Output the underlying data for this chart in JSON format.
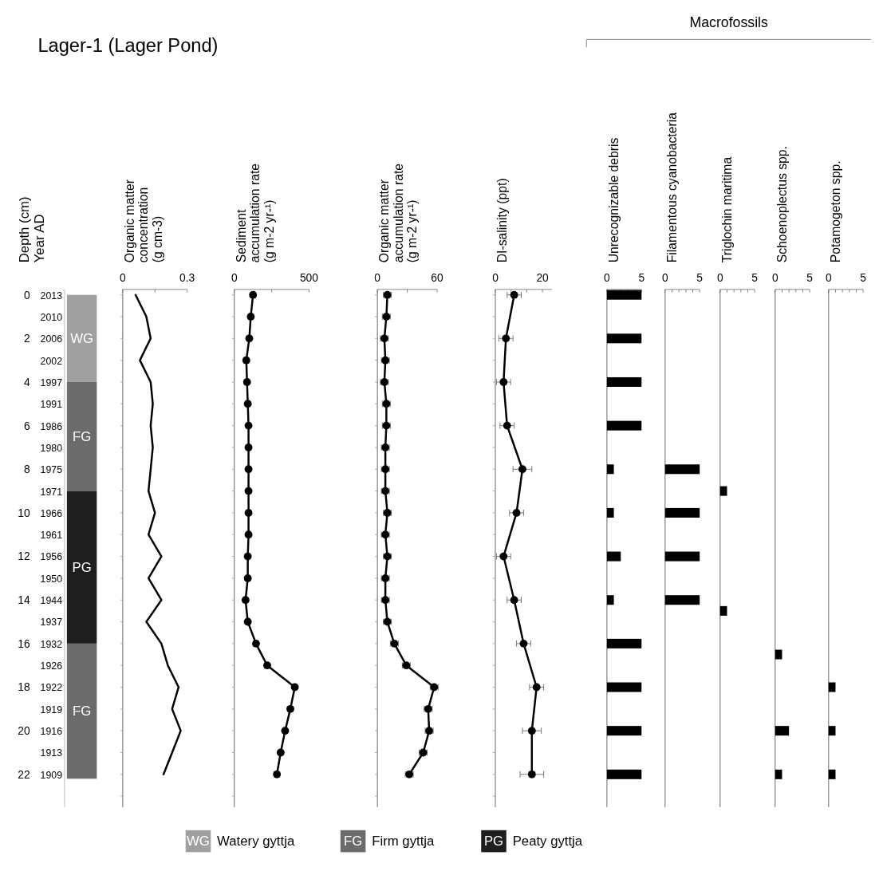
{
  "chart_data": [
    {
      "type": "bar",
      "title": "Lager-1 (Lager Pond)",
      "ylabel": "Depth (cm)",
      "y2label": "Year AD",
      "categories": [
        null
      ],
      "stacked": true,
      "legend": "bottom",
      "series": [
        {
          "name": "Watery gyttja",
          "color": "#a0a0a0",
          "values": [
            4
          ],
          "value_labels": [
            "WG"
          ]
        },
        {
          "name": "Firm gyttja",
          "color": "#6b6b6b",
          "values": [
            5
          ],
          "value_labels": [
            "FG"
          ]
        },
        {
          "name": "Peaty gyttja",
          "color": "#1e1e1e",
          "values": [
            7
          ],
          "value_labels": [
            "PG"
          ]
        },
        {
          "color": "#6b6b6b",
          "values": [
            6.2
          ],
          "value_labels": [
            "FG"
          ]
        }
      ],
      "ylim": [
        23.5,
        -0.25
      ],
      "yticks": [
        0,
        2,
        4,
        6,
        8,
        10,
        12,
        14,
        16,
        18,
        20,
        22
      ],
      "y2_categories": [
        "2013",
        "2010",
        "2006",
        "2002",
        "1997",
        "1991",
        "1986",
        "1980",
        "1975",
        "1971",
        "1966",
        "1961",
        "1956",
        "1950",
        "1944",
        "1937",
        "1932",
        "1926",
        "1922",
        "1919",
        "1916",
        "1913",
        "1909"
      ]
    },
    {
      "type": "line",
      "orientation": "horizontal",
      "title": "Organic matter\nconcentration\n(g cm-3)",
      "color": "#000000",
      "marker": "none",
      "tick_labels": "x",
      "x": [
        0,
        1,
        2,
        3,
        4,
        5,
        6,
        7,
        8,
        9,
        10,
        11,
        12,
        13,
        14,
        15,
        16,
        17,
        18,
        19,
        20,
        21,
        22
      ],
      "values": [
        0.06,
        0.11,
        0.13,
        0.08,
        0.13,
        0.14,
        0.13,
        0.14,
        0.13,
        0.12,
        0.15,
        0.12,
        0.18,
        0.12,
        0.18,
        0.11,
        0.18,
        0.21,
        0.26,
        0.23,
        0.27,
        0.23,
        0.19
      ],
      "xlim": [
        0,
        0.3
      ],
      "xticks": [
        0,
        {
          "value": 0.15,
          "label": null
        },
        0.3
      ],
      "ylim": [
        23.5,
        -0.25
      ],
      "yticks": [
        {
          "value": 0,
          "label": null
        },
        {
          "value": 1,
          "label": null
        },
        {
          "value": 2,
          "label": null
        },
        {
          "value": 3,
          "label": null
        },
        {
          "value": 4,
          "label": null
        },
        {
          "value": 5,
          "label": null
        },
        {
          "value": 6,
          "label": null
        },
        {
          "value": 7,
          "label": null
        },
        {
          "value": 8,
          "label": null
        },
        {
          "value": 9,
          "label": null
        },
        {
          "value": 10,
          "label": null
        },
        {
          "value": 11,
          "label": null
        },
        {
          "value": 12,
          "label": null
        },
        {
          "value": 13,
          "label": null
        },
        {
          "value": 14,
          "label": null
        },
        {
          "value": 15,
          "label": null
        },
        {
          "value": 16,
          "label": null
        },
        {
          "value": 17,
          "label": null
        },
        {
          "value": 18,
          "label": null
        },
        {
          "value": 19,
          "label": null
        },
        {
          "value": 20,
          "label": null
        },
        {
          "value": 21,
          "label": null
        },
        {
          "value": 22,
          "label": null
        },
        {
          "value": 23,
          "label": null
        }
      ]
    },
    {
      "type": "line",
      "orientation": "horizontal",
      "title": "Sediment\naccumulation rate\n(g m-2 yr-¹)",
      "color": "#000000",
      "marker": "circle",
      "tick_labels": "x",
      "x": [
        0,
        1,
        2,
        3,
        4,
        5,
        6,
        7,
        8,
        9,
        10,
        11,
        12,
        13,
        14,
        15,
        16,
        17,
        18,
        19,
        20,
        21,
        22
      ],
      "values": [
        125,
        110,
        100,
        80,
        85,
        90,
        95,
        95,
        95,
        95,
        95,
        95,
        90,
        90,
        75,
        90,
        145,
        220,
        405,
        375,
        340,
        310,
        285
      ],
      "errors": [
        15,
        15,
        15,
        15,
        15,
        15,
        15,
        15,
        15,
        15,
        15,
        15,
        15,
        15,
        15,
        15,
        15,
        15,
        15,
        15,
        15,
        15,
        15
      ],
      "xlim": [
        0,
        500
      ],
      "xticks": [
        0,
        {
          "value": 250,
          "label": null
        },
        500
      ],
      "ylim": [
        23.5,
        -0.25
      ],
      "yticks": [
        {
          "value": 0,
          "label": null
        },
        {
          "value": 1,
          "label": null
        },
        {
          "value": 2,
          "label": null
        },
        {
          "value": 3,
          "label": null
        },
        {
          "value": 4,
          "label": null
        },
        {
          "value": 5,
          "label": null
        },
        {
          "value": 6,
          "label": null
        },
        {
          "value": 7,
          "label": null
        },
        {
          "value": 8,
          "label": null
        },
        {
          "value": 9,
          "label": null
        },
        {
          "value": 10,
          "label": null
        },
        {
          "value": 11,
          "label": null
        },
        {
          "value": 12,
          "label": null
        },
        {
          "value": 13,
          "label": null
        },
        {
          "value": 14,
          "label": null
        },
        {
          "value": 15,
          "label": null
        },
        {
          "value": 16,
          "label": null
        },
        {
          "value": 17,
          "label": null
        },
        {
          "value": 18,
          "label": null
        },
        {
          "value": 19,
          "label": null
        },
        {
          "value": 20,
          "label": null
        },
        {
          "value": 21,
          "label": null
        },
        {
          "value": 22,
          "label": null
        },
        {
          "value": 23,
          "label": null
        }
      ]
    },
    {
      "type": "line",
      "orientation": "horizontal",
      "title": "Organic matter\naccumulation rate\n(g m-2 yr-¹)",
      "color": "#000000",
      "marker": "circle",
      "tick_labels": "x",
      "x": [
        0,
        1,
        2,
        3,
        4,
        5,
        6,
        7,
        8,
        9,
        10,
        11,
        12,
        13,
        14,
        15,
        16,
        17,
        18,
        19,
        20,
        21,
        22
      ],
      "values": [
        10,
        9,
        7,
        8,
        7,
        9,
        9,
        8,
        8,
        8,
        10,
        8,
        10,
        8,
        8,
        10,
        17,
        29,
        57,
        51,
        52,
        46,
        32
      ],
      "errors": [
        4,
        4,
        4,
        4,
        4,
        4,
        4,
        4,
        4,
        4,
        4,
        4,
        4,
        4,
        4,
        4,
        4,
        4,
        4,
        4,
        4,
        4,
        4
      ],
      "xlim": [
        0,
        60
      ],
      "xticks": [
        0,
        {
          "value": 30,
          "label": null
        },
        60
      ],
      "ylim": [
        23.5,
        -0.25
      ],
      "yticks": [
        {
          "value": 0,
          "label": null
        },
        {
          "value": 1,
          "label": null
        },
        {
          "value": 2,
          "label": null
        },
        {
          "value": 3,
          "label": null
        },
        {
          "value": 4,
          "label": null
        },
        {
          "value": 5,
          "label": null
        },
        {
          "value": 6,
          "label": null
        },
        {
          "value": 7,
          "label": null
        },
        {
          "value": 8,
          "label": null
        },
        {
          "value": 9,
          "label": null
        },
        {
          "value": 10,
          "label": null
        },
        {
          "value": 11,
          "label": null
        },
        {
          "value": 12,
          "label": null
        },
        {
          "value": 13,
          "label": null
        },
        {
          "value": 14,
          "label": null
        },
        {
          "value": 15,
          "label": null
        },
        {
          "value": 16,
          "label": null
        },
        {
          "value": 17,
          "label": null
        },
        {
          "value": 18,
          "label": null
        },
        {
          "value": 19,
          "label": null
        },
        {
          "value": 20,
          "label": null
        },
        {
          "value": 21,
          "label": null
        },
        {
          "value": 22,
          "label": null
        },
        {
          "value": 23,
          "label": null
        }
      ]
    },
    {
      "type": "line",
      "orientation": "horizontal",
      "title": "DI-salinity (ppt)",
      "color": "#000000",
      "marker": "circle",
      "tick_labels": "x",
      "x": [
        0,
        2,
        4,
        6,
        8,
        10,
        12,
        14,
        16,
        18,
        20,
        22
      ],
      "values": [
        8,
        4.5,
        3.5,
        5,
        11.5,
        9,
        3.5,
        8,
        12,
        17.5,
        15.5,
        15.5
      ],
      "errors": [
        3,
        3,
        3,
        3,
        4,
        3,
        3,
        3,
        3,
        3,
        4,
        5
      ],
      "xlim": [
        0,
        24
      ],
      "xticks": [
        0,
        {
          "value": 6.67,
          "label": null
        },
        {
          "value": 13.33,
          "label": null
        },
        20
      ],
      "ylim": [
        23.5,
        -0.25
      ],
      "yticks": [
        {
          "value": 0,
          "label": null
        },
        {
          "value": 1,
          "label": null
        },
        {
          "value": 2,
          "label": null
        },
        {
          "value": 3,
          "label": null
        },
        {
          "value": 4,
          "label": null
        },
        {
          "value": 5,
          "label": null
        },
        {
          "value": 6,
          "label": null
        },
        {
          "value": 7,
          "label": null
        },
        {
          "value": 8,
          "label": null
        },
        {
          "value": 9,
          "label": null
        },
        {
          "value": 10,
          "label": null
        },
        {
          "value": 11,
          "label": null
        },
        {
          "value": 12,
          "label": null
        },
        {
          "value": 13,
          "label": null
        },
        {
          "value": 14,
          "label": null
        },
        {
          "value": 15,
          "label": null
        },
        {
          "value": 16,
          "label": null
        },
        {
          "value": 17,
          "label": null
        },
        {
          "value": 18,
          "label": null
        },
        {
          "value": 19,
          "label": null
        },
        {
          "value": 20,
          "label": null
        },
        {
          "value": 21,
          "label": null
        },
        {
          "value": 22,
          "label": null
        },
        {
          "value": 23,
          "label": null
        }
      ]
    },
    {
      "type": "bar",
      "orientation": "horizontal",
      "title": "Unrecognizable debris",
      "annotations": [
        "Macrofossils"
      ],
      "color": "#000000",
      "tick_labels": "x",
      "x": [
        0,
        2,
        4,
        6,
        8,
        10,
        12,
        14,
        16,
        18,
        20,
        22
      ],
      "values": [
        5,
        5,
        5,
        5,
        1,
        1,
        2,
        1,
        5,
        5,
        5,
        5
      ],
      "xlim": [
        0,
        5
      ],
      "xticks": [
        0,
        {
          "value": 1,
          "label": null
        },
        {
          "value": 2,
          "label": null
        },
        {
          "value": 3,
          "label": null
        },
        {
          "value": 4,
          "label": null
        },
        5
      ],
      "ylim": [
        23.5,
        -0.25
      ]
    },
    {
      "type": "bar",
      "orientation": "horizontal",
      "title": "Filamentous cyanobacteria",
      "color": "#000000",
      "tick_labels": "x",
      "x": [
        8,
        10,
        12,
        14
      ],
      "values": [
        5,
        5,
        5,
        5
      ],
      "xlim": [
        0,
        5
      ],
      "xticks": [
        0,
        {
          "value": 1,
          "label": null
        },
        {
          "value": 2,
          "label": null
        },
        {
          "value": 3,
          "label": null
        },
        {
          "value": 4,
          "label": null
        },
        5
      ],
      "ylim": [
        23.5,
        -0.25
      ]
    },
    {
      "type": "bar",
      "orientation": "horizontal",
      "title": "Triglochin maritima",
      "color": "#000000",
      "tick_labels": "x",
      "x": [
        9,
        14.5
      ],
      "values": [
        1,
        1
      ],
      "xlim": [
        0,
        5
      ],
      "xticks": [
        0,
        {
          "value": 1,
          "label": null
        },
        {
          "value": 2,
          "label": null
        },
        {
          "value": 3,
          "label": null
        },
        {
          "value": 4,
          "label": null
        },
        5
      ],
      "ylim": [
        23.5,
        -0.25
      ]
    },
    {
      "type": "bar",
      "orientation": "horizontal",
      "title": "Schoenoplectus spp.",
      "color": "#000000",
      "tick_labels": "x",
      "x": [
        16.5,
        20,
        22
      ],
      "values": [
        1,
        2,
        1
      ],
      "xlim": [
        0,
        5
      ],
      "xticks": [
        0,
        {
          "value": 1,
          "label": null
        },
        {
          "value": 2,
          "label": null
        },
        {
          "value": 3,
          "label": null
        },
        {
          "value": 4,
          "label": null
        },
        5
      ],
      "ylim": [
        23.5,
        -0.25
      ]
    },
    {
      "type": "bar",
      "orientation": "horizontal",
      "title": "Potamogeton spp.",
      "color": "#000000",
      "tick_labels": "x",
      "x": [
        18,
        20,
        22
      ],
      "values": [
        1,
        1,
        1
      ],
      "xlim": [
        0,
        5
      ],
      "xticks": [
        0,
        {
          "value": 1,
          "label": null
        },
        {
          "value": 2,
          "label": null
        },
        {
          "value": 3,
          "label": null
        },
        {
          "value": 4,
          "label": null
        },
        5
      ],
      "ylim": [
        23.5,
        -0.25
      ]
    }
  ]
}
